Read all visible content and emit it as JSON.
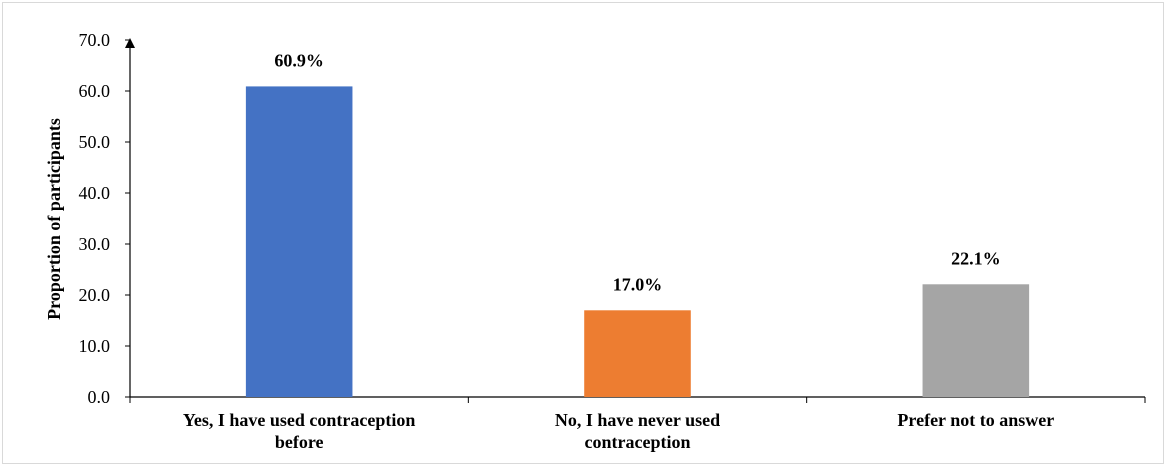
{
  "chart_data": {
    "type": "bar",
    "categories": [
      [
        "Yes, I have used contraception",
        "before"
      ],
      [
        "No, I have never used",
        "contraception"
      ],
      [
        "Prefer not to answer"
      ]
    ],
    "values": [
      60.9,
      17.0,
      22.1
    ],
    "data_labels": [
      "60.9%",
      "17.0%",
      "22.1%"
    ],
    "colors": [
      "#4472c4",
      "#ed7d31",
      "#a5a5a5"
    ],
    "title": "",
    "xlabel": "",
    "ylabel": "Proportion of participants",
    "ylim": [
      0,
      70
    ],
    "yticks": [
      "0.0",
      "10.0",
      "20.0",
      "30.0",
      "40.0",
      "50.0",
      "60.0",
      "70.0"
    ],
    "grid": false,
    "legend": "none"
  }
}
